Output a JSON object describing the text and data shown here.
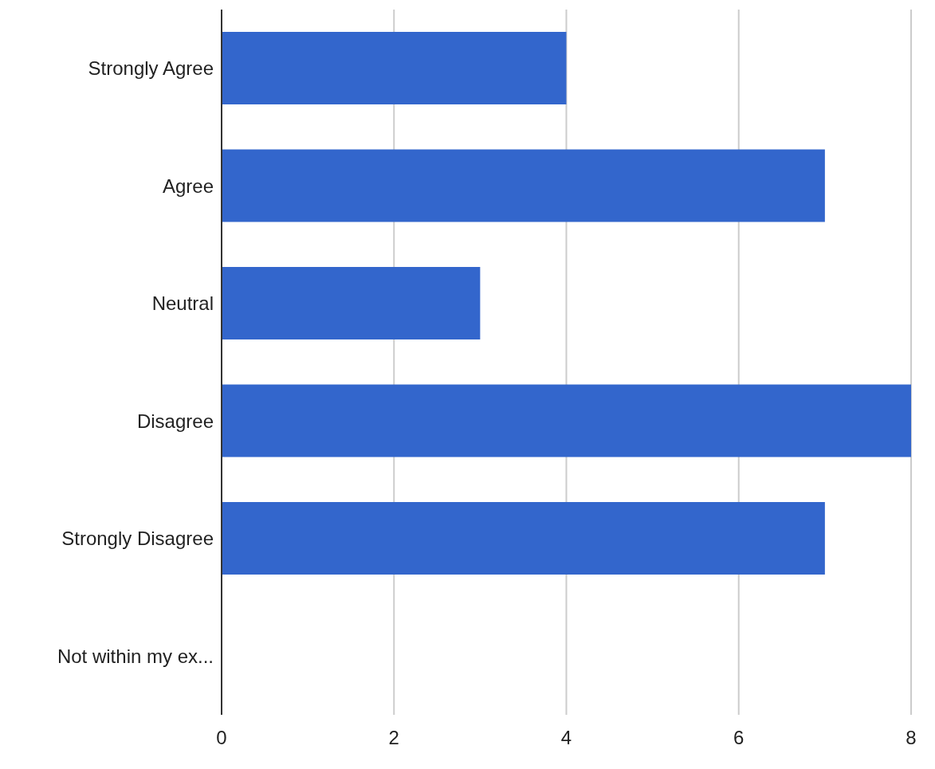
{
  "chart_data": {
    "type": "bar",
    "orientation": "horizontal",
    "categories": [
      "Strongly Agree",
      "Agree",
      "Neutral",
      "Disagree",
      "Strongly Disagree",
      "Not within my ex..."
    ],
    "values": [
      4,
      7,
      3,
      8,
      7,
      0
    ],
    "color": "#3366cc",
    "xlim": [
      0,
      8
    ],
    "xticks": [
      0,
      2,
      4,
      6,
      8
    ],
    "grid": "x"
  }
}
